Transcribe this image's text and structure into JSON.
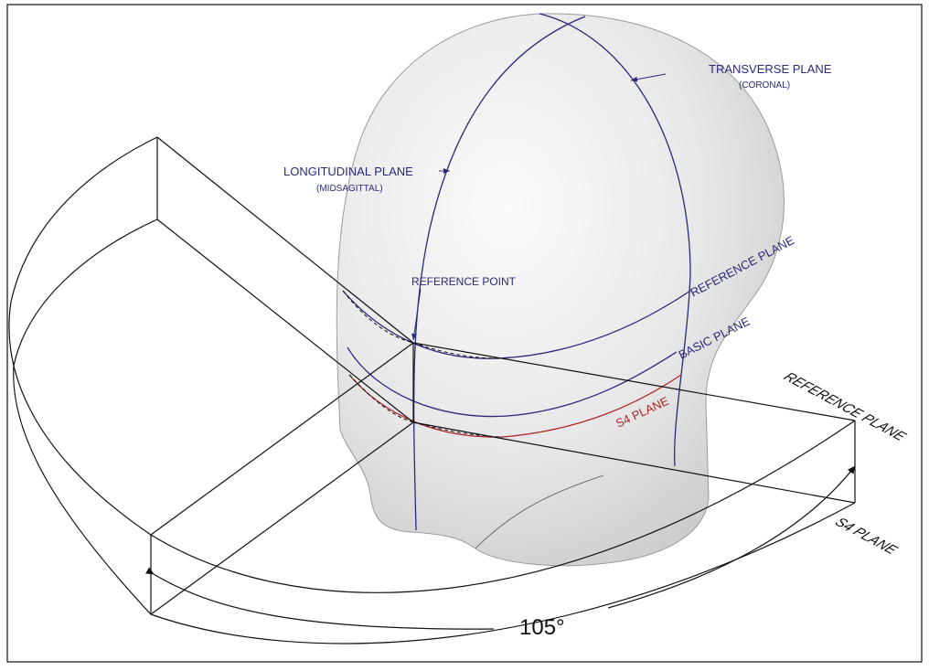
{
  "labels": {
    "transverse_plane": "TRANSVERSE PLANE",
    "transverse_sub": "(CORONAL)",
    "longitudinal_plane": "LONGITUDINAL PLANE",
    "longitudinal_sub": "(MIDSAGITTAL)",
    "reference_point": "REFERENCE POINT",
    "reference_plane_head": "REFERENCE PLANE",
    "basic_plane": "BASIC PLANE",
    "s4_plane_head": "S4 PLANE",
    "reference_plane_outer": "REFERENCE PLANE",
    "s4_plane_outer": "S4 PLANE",
    "angle": "105°"
  },
  "colors": {
    "plane_line": "#2a2a7a",
    "s4_line": "#b0262a",
    "outline": "#111111",
    "head_fill_light": "#f6f6f6",
    "head_fill_dark": "#cfcfcf"
  }
}
